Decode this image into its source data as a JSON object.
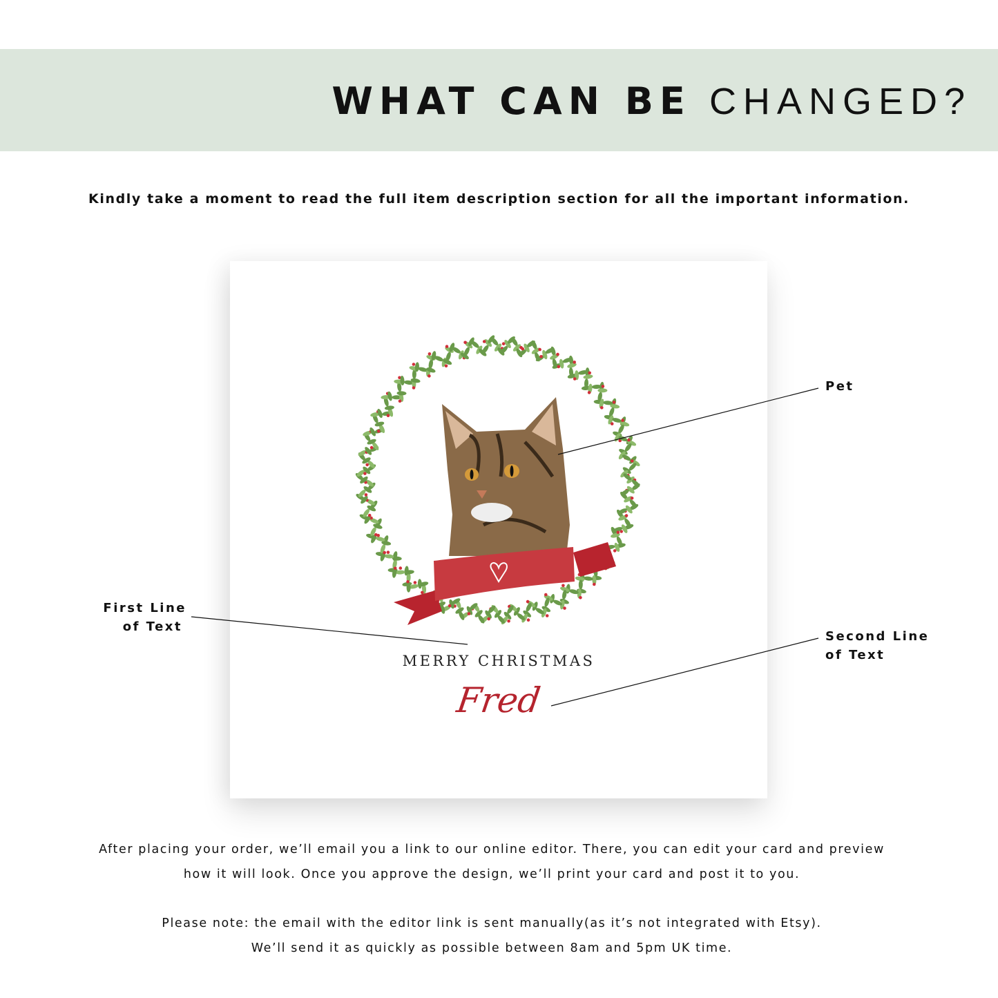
{
  "header": {
    "title_bold": "WHAT CAN BE",
    "title_light": "CHANGED?",
    "background": "#dce6dc"
  },
  "subtitle": "Kindly take a moment to read the full item description section for all the important information.",
  "card": {
    "greeting": "MERRY CHRISTMAS",
    "name": "Fred",
    "name_color": "#b5242e",
    "ribbon_color": "#c0323a",
    "wreath_color": "#6a9a4a",
    "images": [
      "cat-portrait",
      "holly-wreath",
      "ribbon-with-heart"
    ]
  },
  "callouts": {
    "pet": "Pet",
    "first_line_1": "First Line",
    "first_line_2": "of Text",
    "second_line_1": "Second Line",
    "second_line_2": "of Text"
  },
  "footer": {
    "line1": "After placing your order, we’ll email you a link to our online editor. There, you can edit your card and preview",
    "line2": "how it will look. Once you approve the design, we’ll print your card and post it to you.",
    "line3": "Please note: the email with the editor link is sent manually(as it’s not integrated with Etsy).",
    "line4": "We’ll send it as quickly as possible between 8am and 5pm UK time."
  }
}
